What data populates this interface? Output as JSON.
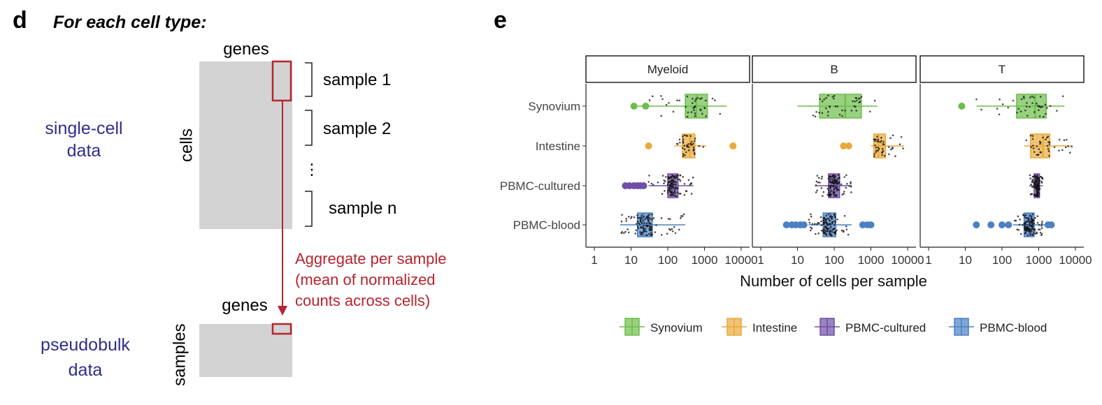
{
  "panel_d": {
    "letter": "d",
    "heading": "For each cell type:",
    "genes_top": "genes",
    "cells": "cells",
    "samples_brackets": [
      "sample 1",
      "sample 2",
      "sample n"
    ],
    "ellipsis": "⋮",
    "single_cell_line1": "single-cell",
    "single_cell_line2": "data",
    "aggregate_lines": [
      "Aggregate per sample",
      "(mean of normalized",
      "counts across cells)"
    ],
    "genes_bottom": "genes",
    "samples": "samples",
    "pseudobulk_line1": "pseudobulk",
    "pseudobulk_line2": "data",
    "colors": {
      "navy": "#2e2e8c",
      "red": "#b8232e",
      "gray": "#d3d3d3"
    }
  },
  "panel_e_letter": "e",
  "chart_data": {
    "type": "box",
    "facets": [
      "Myeloid",
      "B",
      "T"
    ],
    "groups": [
      "Synovium",
      "Intestine",
      "PBMC-cultured",
      "PBMC-blood"
    ],
    "colors": {
      "Synovium": "#6cbd4a",
      "Intestine": "#e9a93a",
      "PBMC-cultured": "#6f4ea6",
      "PBMC-blood": "#4b80c4"
    },
    "x_scale": "log10",
    "xlim": [
      1,
      10000
    ],
    "x_ticks": [
      1,
      10,
      100,
      1000,
      10000
    ],
    "x_tick_labels": [
      "1",
      "10",
      "100",
      "1000",
      "10000"
    ],
    "xlabel": "Number of cells per sample",
    "legend_position": "bottom",
    "legend": [
      "Synovium",
      "Intestine",
      "PBMC-cultured",
      "PBMC-blood"
    ],
    "boxes": {
      "Myeloid": {
        "Synovium": {
          "whisker_low": 15,
          "q1": 300,
          "median": 600,
          "q3": 1200,
          "whisker_high": 4000,
          "outliers": [
            12,
            25
          ]
        },
        "Intestine": {
          "whisker_low": 150,
          "q1": 250,
          "median": 400,
          "q3": 550,
          "whisker_high": 1100,
          "outliers": [
            30,
            6000
          ]
        },
        "PBMC-cultured": {
          "whisker_low": 30,
          "q1": 100,
          "median": 130,
          "q3": 190,
          "whisker_high": 500,
          "outliers": [
            7,
            9,
            12,
            15,
            18,
            22
          ]
        },
        "PBMC-blood": {
          "whisker_low": 5,
          "q1": 15,
          "median": 22,
          "q3": 38,
          "whisker_high": 300,
          "outliers": []
        }
      },
      "B": {
        "Synovium": {
          "whisker_low": 10,
          "q1": 40,
          "median": 200,
          "q3": 550,
          "whisker_high": 1500,
          "outliers": []
        },
        "Intestine": {
          "whisker_low": 1000,
          "q1": 1200,
          "median": 1600,
          "q3": 2500,
          "whisker_high": 8000,
          "outliers": [
            180,
            250
          ]
        },
        "PBMC-cultured": {
          "whisker_low": 30,
          "q1": 70,
          "median": 100,
          "q3": 140,
          "whisker_high": 300,
          "outliers": []
        },
        "PBMC-blood": {
          "whisker_low": 20,
          "q1": 50,
          "median": 80,
          "q3": 110,
          "whisker_high": 300,
          "outliers": [
            5,
            7,
            9,
            12,
            15,
            600,
            800,
            1000
          ]
        }
      },
      "T": {
        "Synovium": {
          "whisker_low": 20,
          "q1": 250,
          "median": 800,
          "q3": 1600,
          "whisker_high": 5000,
          "outliers": [
            8
          ]
        },
        "Intestine": {
          "whisker_low": 400,
          "q1": 600,
          "median": 1300,
          "q3": 2000,
          "whisker_high": 8000,
          "outliers": []
        },
        "PBMC-cultured": {
          "whisker_low": 550,
          "q1": 750,
          "median": 900,
          "q3": 1050,
          "whisker_high": 1300,
          "outliers": []
        },
        "PBMC-blood": {
          "whisker_low": 200,
          "q1": 400,
          "median": 550,
          "q3": 750,
          "whisker_high": 1500,
          "outliers": [
            20,
            50,
            100,
            150,
            1800,
            2200
          ]
        }
      }
    }
  }
}
